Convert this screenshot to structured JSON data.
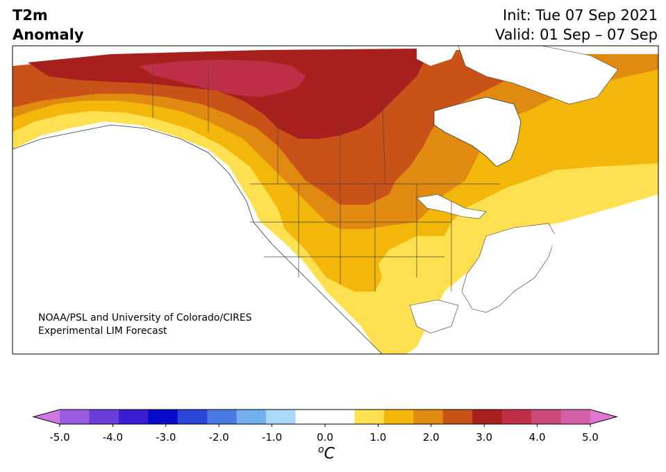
{
  "title": {
    "line1": "T2m",
    "line2": "Anomaly"
  },
  "run": {
    "init": "Init: Tue 07 Sep 2021",
    "valid": "Valid: 01 Sep – 07 Sep"
  },
  "credit": {
    "line1": "NOAA/PSL and University of Colorado/CIRES",
    "line2": "Experimental LIM Forecast"
  },
  "colorbar": {
    "unit_sup": "o",
    "unit_main": "C",
    "min": -5.0,
    "max": 5.0,
    "step": 0.5,
    "ticks": [
      "-5.0",
      "-4.0",
      "-3.0",
      "-2.0",
      "-1.0",
      "0.0",
      "1.0",
      "2.0",
      "3.0",
      "4.0",
      "5.0"
    ],
    "colors": [
      "#d278e6",
      "#9b5ae0",
      "#6a3ed8",
      "#3c1ed2",
      "#0a0acd",
      "#2a46d8",
      "#4a78e4",
      "#74b0ee",
      "#aad8f8",
      "#ffffff",
      "#ffffff",
      "#ffe050",
      "#f2b70a",
      "#e08a12",
      "#c85218",
      "#a8201e",
      "#bf3048",
      "#cc4878",
      "#d660a8",
      "#e078d2"
    ]
  },
  "map": {
    "region": "North America",
    "land_color": "#ffffff",
    "ocean_color": "#ffffff",
    "boundary_color": "#444444"
  }
}
